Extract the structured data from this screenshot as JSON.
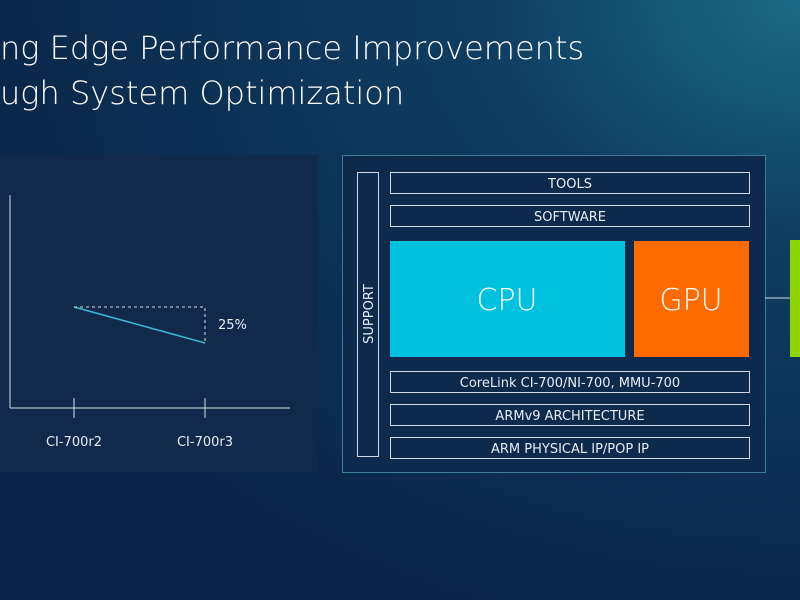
{
  "header": {
    "title_lines": [
      "ng Edge Performance Improvements",
      "ugh System Optimization"
    ]
  },
  "chart": {
    "categories": [
      "CI-700r2",
      "CI-700r3"
    ],
    "annotation": "25%"
  },
  "diagram": {
    "support": "SUPPORT",
    "layers_top": [
      "TOOLS",
      "SOFTWARE"
    ],
    "cores": [
      "CPU",
      "GPU"
    ],
    "layers_bottom": [
      "CoreLink CI-700/NI-700, MMU-700",
      "ARMv9 ARCHITECTURE",
      "ARM PHYSICAL IP/POP IP"
    ]
  }
}
